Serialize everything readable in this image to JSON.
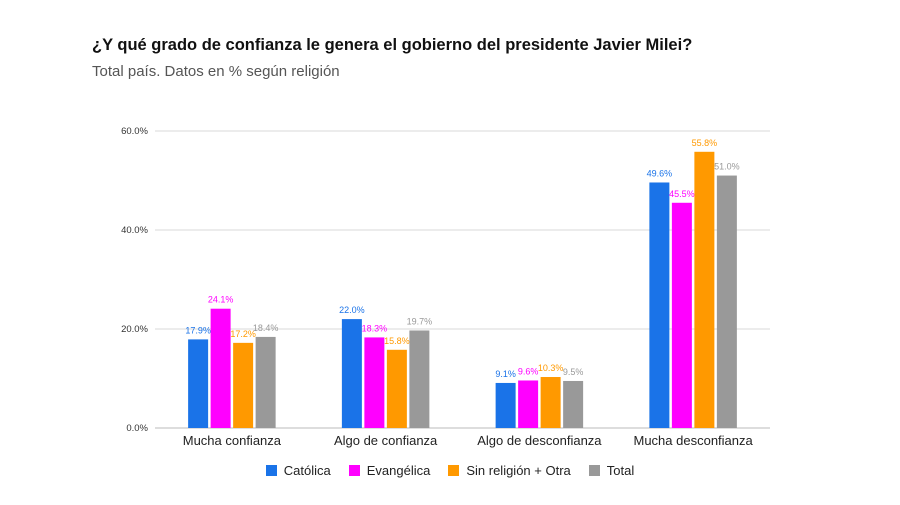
{
  "title": "¿Y qué grado de confianza le genera el gobierno del presidente Javier Milei?",
  "subtitle": "Total país. Datos en % según religión",
  "chart_data": {
    "type": "bar",
    "title": "¿Y qué grado de confianza le genera el gobierno del presidente Javier Milei?",
    "subtitle": "Total país. Datos en % según religión",
    "categories": [
      "Mucha confianza",
      "Algo de confianza",
      "Algo de desconfianza",
      "Mucha desconfianza"
    ],
    "series": [
      {
        "name": "Católica",
        "color": "#1a73e8",
        "values": [
          17.9,
          22.0,
          9.1,
          49.6
        ],
        "labels": [
          "17.9%",
          "22.0%",
          "9.1%",
          "49.6%"
        ]
      },
      {
        "name": "Evangélica",
        "color": "#ff00ff",
        "values": [
          24.1,
          18.3,
          9.6,
          45.5
        ],
        "labels": [
          "24.1%",
          "18.3%",
          "9.6%",
          "45.5%"
        ]
      },
      {
        "name": "Sin religión + Otra",
        "color": "#ff9900",
        "values": [
          17.2,
          15.8,
          10.3,
          55.8
        ],
        "labels": [
          "17.2%",
          "15.8%",
          "10.3%",
          "55.8%"
        ]
      },
      {
        "name": "Total",
        "color": "#999999",
        "values": [
          18.4,
          19.7,
          9.5,
          51.0
        ],
        "labels": [
          "18.4%",
          "19.7%",
          "9.5%",
          "51.0%"
        ]
      }
    ],
    "yticks": [
      "0.0%",
      "20.0%",
      "40.0%",
      "60.0%"
    ],
    "ytick_values": [
      0,
      20,
      40,
      60
    ],
    "ylim": [
      0,
      60
    ],
    "grid": true,
    "legend": "bottom"
  }
}
